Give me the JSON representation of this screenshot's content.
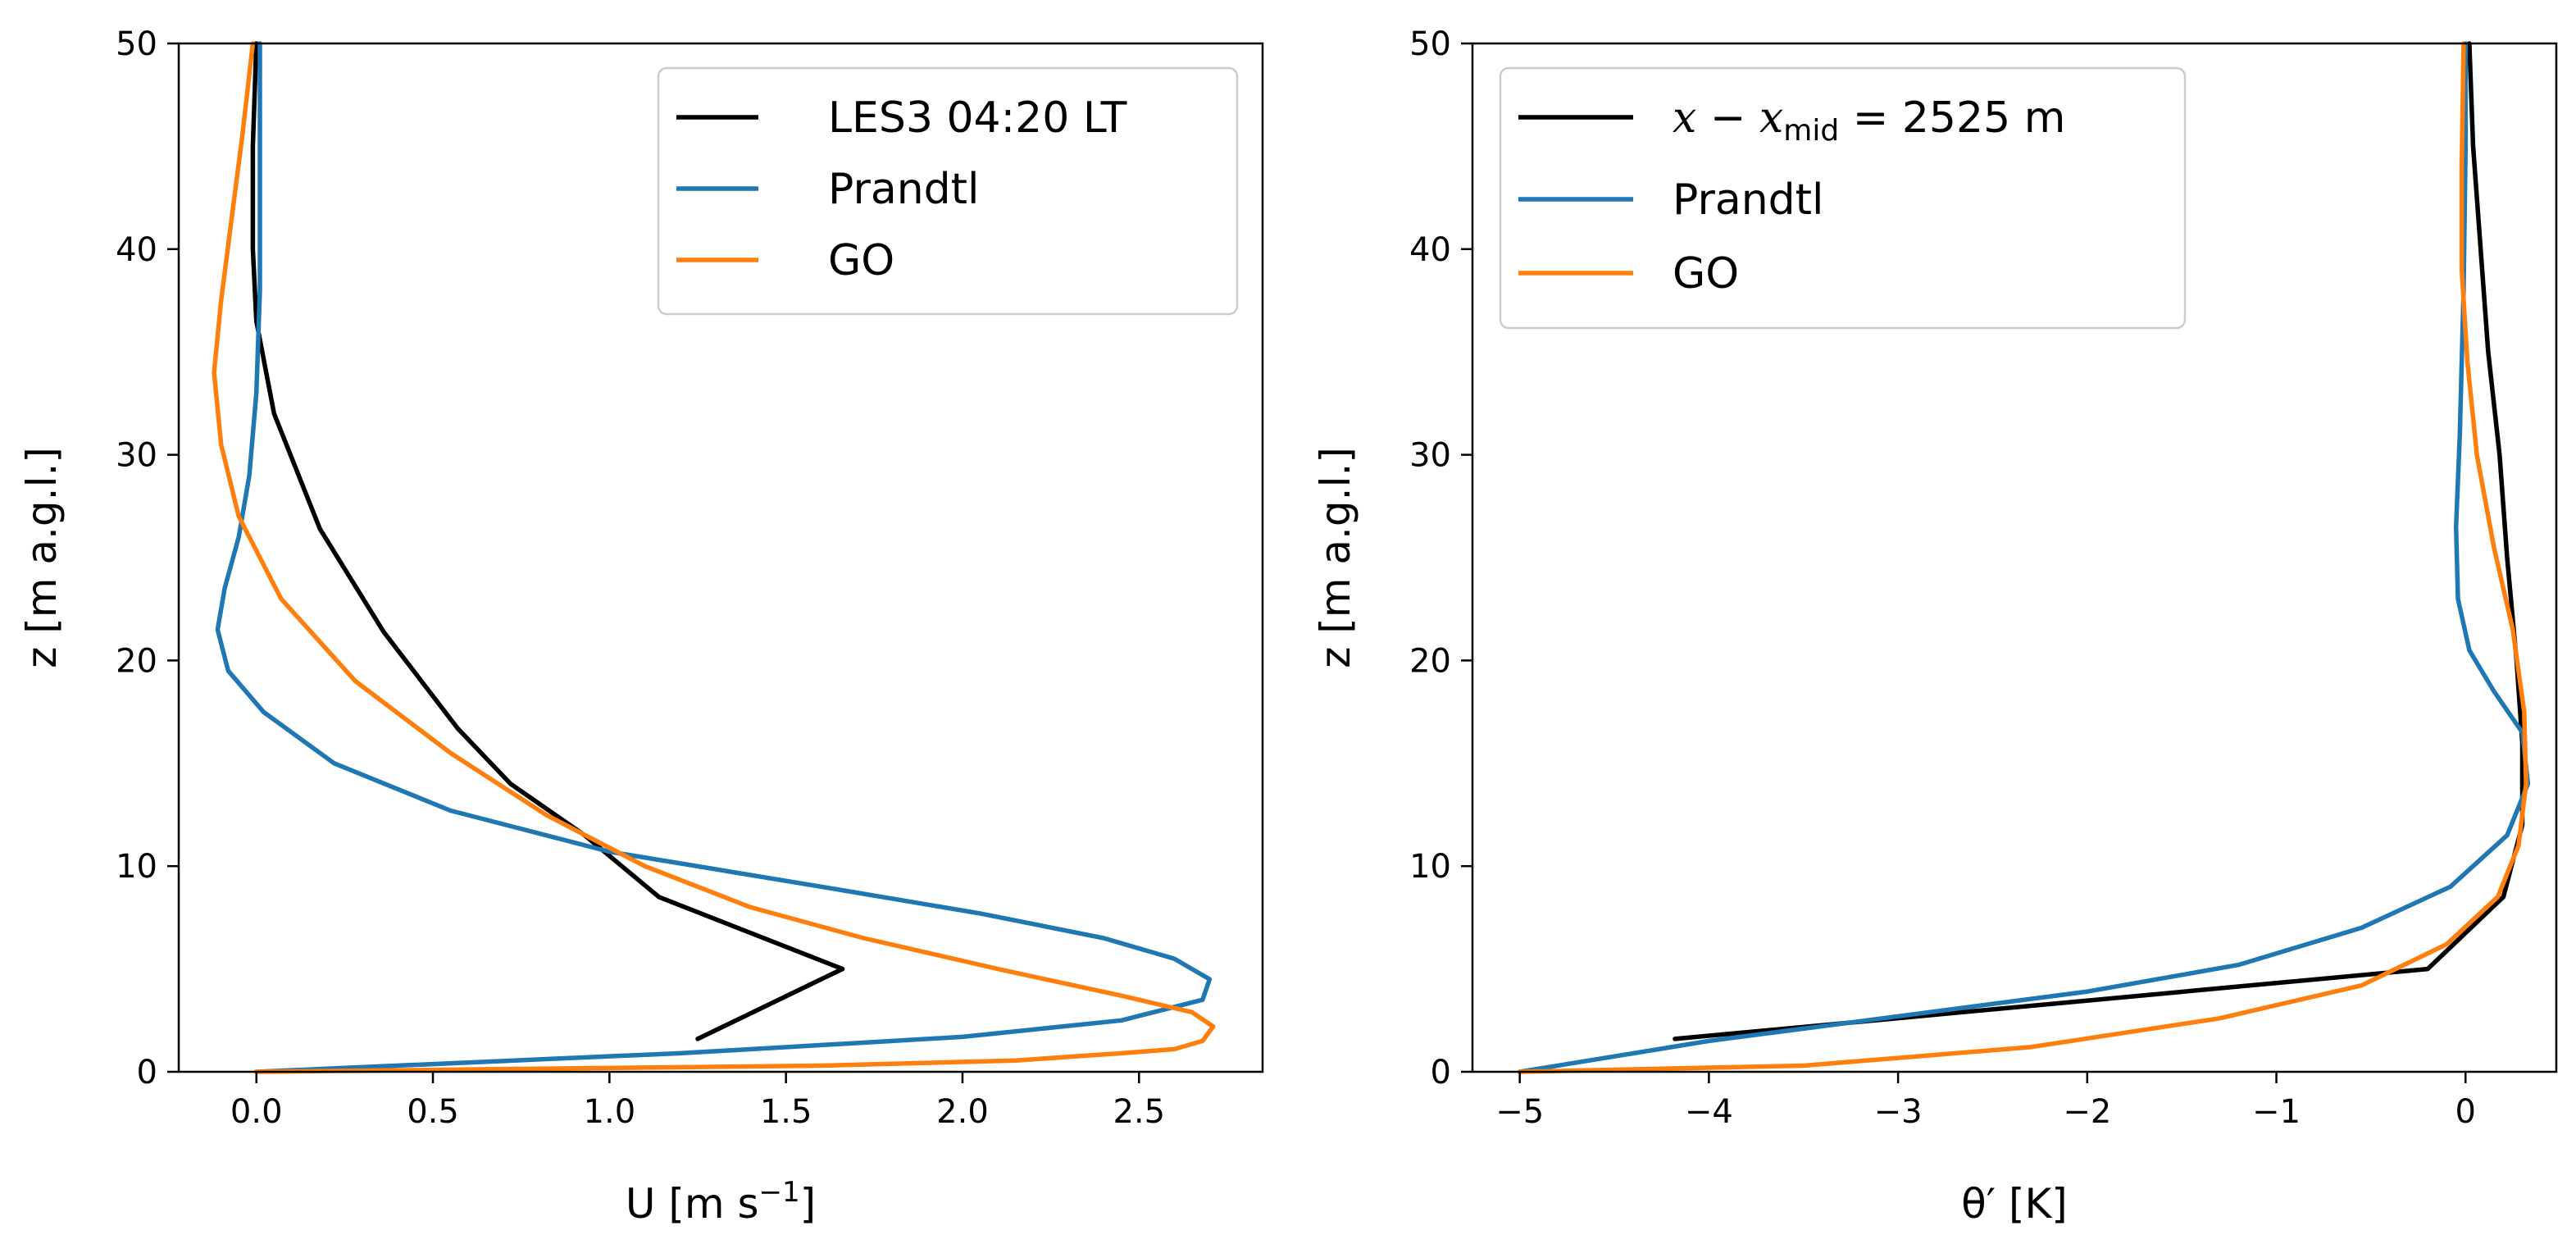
{
  "chart_data": [
    {
      "type": "line",
      "title": "",
      "xlabel": "U [m s",
      "xlabel_sup": "−1",
      "xlabel_end": "]",
      "ylabel": "z [m a.g.l.]",
      "xlim": [
        -0.22,
        2.85
      ],
      "ylim": [
        0,
        50
      ],
      "xticks": [
        0.0,
        0.5,
        1.0,
        1.5,
        2.0,
        2.5
      ],
      "xtick_labels": [
        "0.0",
        "0.5",
        "1.0",
        "1.5",
        "2.0",
        "2.5"
      ],
      "yticks": [
        0,
        10,
        20,
        30,
        40,
        50
      ],
      "ytick_labels": [
        "0",
        "10",
        "20",
        "30",
        "40",
        "50"
      ],
      "legend_position": "top-right",
      "series": [
        {
          "name": "LES3 04:20 LT",
          "color": "#000000",
          "points": [
            [
              1.25,
              1.6
            ],
            [
              1.66,
              5.0
            ],
            [
              1.14,
              8.5
            ],
            [
              0.93,
              11.5
            ],
            [
              0.72,
              14.0
            ],
            [
              0.57,
              16.7
            ],
            [
              0.36,
              21.4
            ],
            [
              0.18,
              26.4
            ],
            [
              0.05,
              32.0
            ],
            [
              0.0,
              36.5
            ],
            [
              -0.01,
              40.0
            ],
            [
              -0.01,
              45.0
            ],
            [
              0.0,
              50.0
            ]
          ]
        },
        {
          "name": "Prandtl",
          "color": "#1f77b4",
          "points": [
            [
              0.0,
              0.0
            ],
            [
              1.2,
              0.9
            ],
            [
              2.0,
              1.7
            ],
            [
              2.45,
              2.5
            ],
            [
              2.68,
              3.5
            ],
            [
              2.7,
              4.5
            ],
            [
              2.6,
              5.5
            ],
            [
              2.4,
              6.5
            ],
            [
              2.05,
              7.7
            ],
            [
              1.6,
              9.0
            ],
            [
              1.0,
              10.7
            ],
            [
              0.55,
              12.7
            ],
            [
              0.22,
              15.0
            ],
            [
              0.02,
              17.5
            ],
            [
              -0.08,
              19.5
            ],
            [
              -0.11,
              21.5
            ],
            [
              -0.09,
              23.5
            ],
            [
              -0.05,
              26.0
            ],
            [
              -0.02,
              29.0
            ],
            [
              0.0,
              33.0
            ],
            [
              0.01,
              38.0
            ],
            [
              0.01,
              45.0
            ],
            [
              0.01,
              50.0
            ]
          ]
        },
        {
          "name": "GO",
          "color": "#ff7f0e",
          "points": [
            [
              0.0,
              0.0
            ],
            [
              0.8,
              0.15
            ],
            [
              1.6,
              0.3
            ],
            [
              2.15,
              0.55
            ],
            [
              2.45,
              0.9
            ],
            [
              2.6,
              1.1
            ],
            [
              2.68,
              1.5
            ],
            [
              2.71,
              2.2
            ],
            [
              2.65,
              2.9
            ],
            [
              2.45,
              3.7
            ],
            [
              2.1,
              5.0
            ],
            [
              1.72,
              6.5
            ],
            [
              1.4,
              8.0
            ],
            [
              1.1,
              10.0
            ],
            [
              0.82,
              12.5
            ],
            [
              0.55,
              15.5
            ],
            [
              0.28,
              19.0
            ],
            [
              0.07,
              23.0
            ],
            [
              -0.05,
              27.0
            ],
            [
              -0.1,
              30.5
            ],
            [
              -0.12,
              34.0
            ],
            [
              -0.1,
              37.5
            ],
            [
              -0.07,
              41.5
            ],
            [
              -0.04,
              45.5
            ],
            [
              -0.01,
              50.0
            ]
          ]
        }
      ]
    },
    {
      "type": "line",
      "title": "",
      "xlabel": "θ′ [K]",
      "ylabel": "z [m a.g.l.]",
      "xlim": [
        -5.25,
        0.48
      ],
      "ylim": [
        0,
        50
      ],
      "xticks": [
        -5,
        -4,
        -3,
        -2,
        -1,
        0
      ],
      "xtick_labels": [
        "−5",
        "−4",
        "−3",
        "−2",
        "−1",
        "0"
      ],
      "yticks": [
        0,
        10,
        20,
        30,
        40,
        50
      ],
      "ytick_labels": [
        "0",
        "10",
        "20",
        "30",
        "40",
        "50"
      ],
      "legend_position": "top-left",
      "series": [
        {
          "name": "x − x_mid = 2525 m",
          "label_parts": [
            "x",
            " − ",
            "x",
            "mid",
            " = 2525 m"
          ],
          "color": "#000000",
          "points": [
            [
              -4.18,
              1.6
            ],
            [
              -0.2,
              5.0
            ],
            [
              0.2,
              8.5
            ],
            [
              0.3,
              12.0
            ],
            [
              0.3,
              16.0
            ],
            [
              0.27,
              20.0
            ],
            [
              0.22,
              25.0
            ],
            [
              0.18,
              30.0
            ],
            [
              0.12,
              35.0
            ],
            [
              0.08,
              40.0
            ],
            [
              0.04,
              45.0
            ],
            [
              0.02,
              50.0
            ]
          ]
        },
        {
          "name": "Prandtl",
          "color": "#1f77b4",
          "points": [
            [
              -5.0,
              0.0
            ],
            [
              -4.0,
              1.5
            ],
            [
              -3.0,
              2.7
            ],
            [
              -2.0,
              3.9
            ],
            [
              -1.2,
              5.2
            ],
            [
              -0.55,
              7.0
            ],
            [
              -0.08,
              9.0
            ],
            [
              0.22,
              11.5
            ],
            [
              0.33,
              14.0
            ],
            [
              0.3,
              16.5
            ],
            [
              0.15,
              18.5
            ],
            [
              0.02,
              20.5
            ],
            [
              -0.04,
              23.0
            ],
            [
              -0.05,
              26.5
            ],
            [
              -0.03,
              31.0
            ],
            [
              -0.01,
              38.0
            ],
            [
              0.0,
              45.0
            ],
            [
              0.0,
              50.0
            ]
          ]
        },
        {
          "name": "GO",
          "color": "#ff7f0e",
          "points": [
            [
              -5.0,
              0.0
            ],
            [
              -3.5,
              0.3
            ],
            [
              -2.3,
              1.2
            ],
            [
              -1.3,
              2.6
            ],
            [
              -0.55,
              4.2
            ],
            [
              -0.1,
              6.2
            ],
            [
              0.17,
              8.5
            ],
            [
              0.28,
              11.0
            ],
            [
              0.32,
              14.0
            ],
            [
              0.31,
              17.5
            ],
            [
              0.25,
              21.5
            ],
            [
              0.15,
              25.5
            ],
            [
              0.06,
              30.0
            ],
            [
              0.01,
              34.5
            ],
            [
              -0.02,
              39.0
            ],
            [
              -0.02,
              44.0
            ],
            [
              -0.01,
              50.0
            ]
          ]
        }
      ]
    }
  ]
}
